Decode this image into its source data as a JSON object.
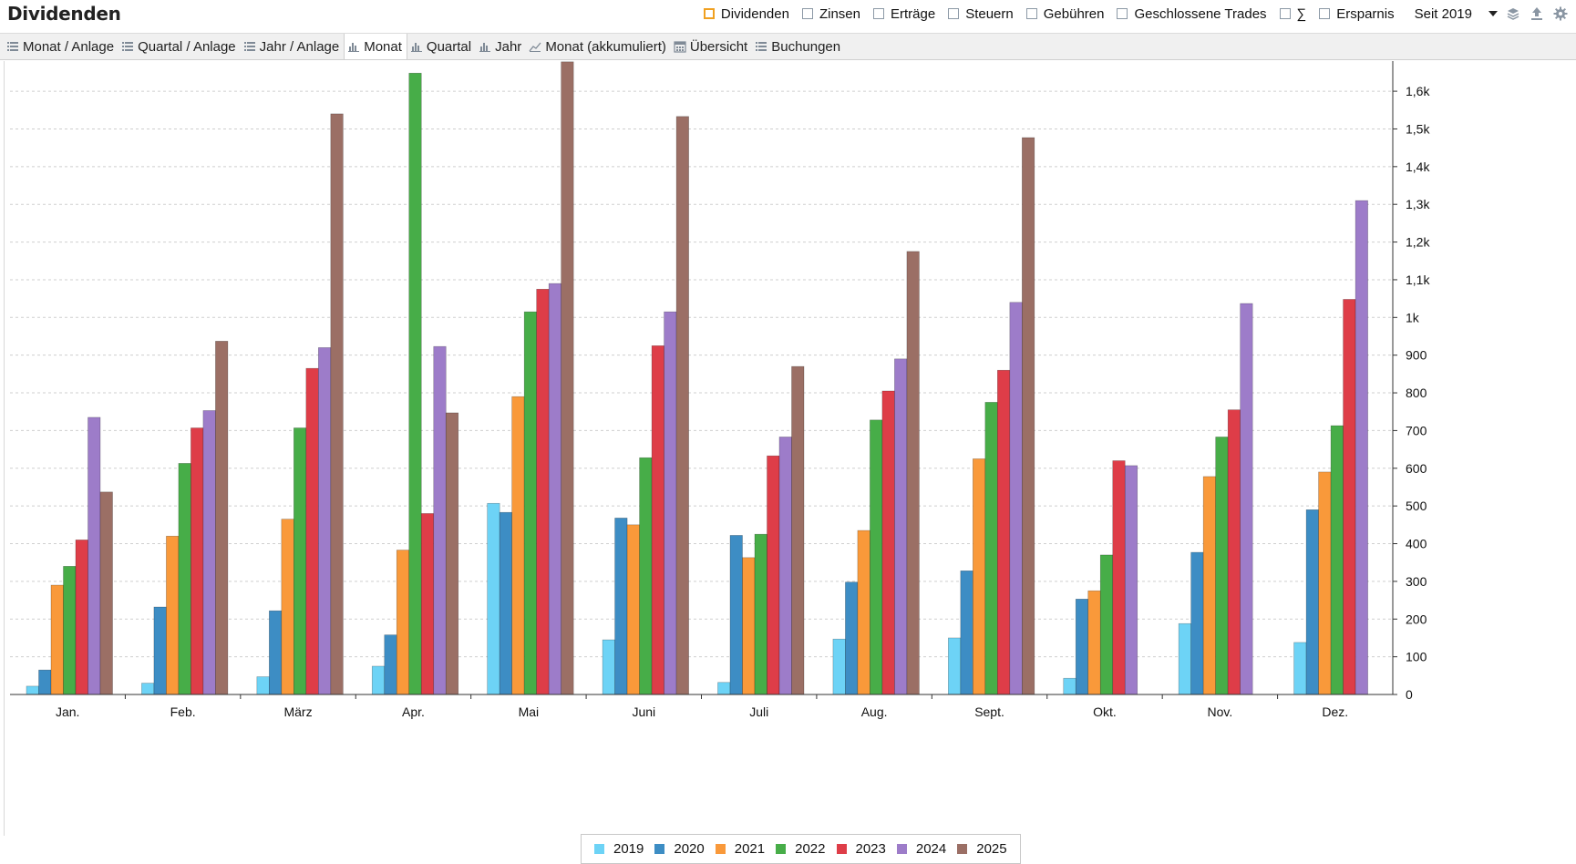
{
  "header": {
    "title": "Dividenden",
    "filters": [
      {
        "label": "Dividenden",
        "checked": true
      },
      {
        "label": "Zinsen",
        "checked": false
      },
      {
        "label": "Erträge",
        "checked": false
      },
      {
        "label": "Steuern",
        "checked": false
      },
      {
        "label": "Gebühren",
        "checked": false
      },
      {
        "label": "Geschlossene Trades",
        "checked": false
      },
      {
        "label": "∑",
        "checked": false
      },
      {
        "label": "Ersparnis",
        "checked": false
      }
    ],
    "period": "Seit 2019",
    "tool_icons": [
      "layers-icon",
      "upload-icon",
      "gear-icon"
    ]
  },
  "tabs": [
    {
      "label": "Monat / Anlage",
      "icon": "list-icon",
      "active": false
    },
    {
      "label": "Quartal / Anlage",
      "icon": "list-icon",
      "active": false
    },
    {
      "label": "Jahr / Anlage",
      "icon": "list-icon",
      "active": false
    },
    {
      "label": "Monat",
      "icon": "bar-chart-icon",
      "active": true
    },
    {
      "label": "Quartal",
      "icon": "bar-chart-icon",
      "active": false
    },
    {
      "label": "Jahr",
      "icon": "bar-chart-icon",
      "active": false
    },
    {
      "label": "Monat (akkumuliert)",
      "icon": "line-chart-icon",
      "active": false
    },
    {
      "label": "Übersicht",
      "icon": "calendar-icon",
      "active": false
    },
    {
      "label": "Buchungen",
      "icon": "list-icon",
      "active": false
    }
  ],
  "chart_data": {
    "type": "bar",
    "categories": [
      "Jan.",
      "Feb.",
      "März",
      "Apr.",
      "Mai",
      "Juni",
      "Juli",
      "Aug.",
      "Sept.",
      "Okt.",
      "Nov.",
      "Dez."
    ],
    "series": [
      {
        "name": "2019",
        "color": "#6dd3f6",
        "values": [
          22,
          30,
          47,
          75,
          507,
          145,
          32,
          147,
          150,
          43,
          188,
          138
        ]
      },
      {
        "name": "2020",
        "color": "#3d8dc4",
        "values": [
          65,
          232,
          222,
          158,
          483,
          468,
          422,
          298,
          328,
          253,
          377,
          490
        ]
      },
      {
        "name": "2021",
        "color": "#f9993a",
        "values": [
          290,
          420,
          465,
          383,
          790,
          450,
          363,
          435,
          625,
          275,
          578,
          590
        ]
      },
      {
        "name": "2022",
        "color": "#47ad48",
        "values": [
          340,
          613,
          707,
          1648,
          1015,
          628,
          425,
          728,
          775,
          370,
          683,
          713
        ]
      },
      {
        "name": "2023",
        "color": "#de3d48",
        "values": [
          410,
          707,
          865,
          480,
          1075,
          925,
          633,
          805,
          860,
          620,
          755,
          1048
        ]
      },
      {
        "name": "2024",
        "color": "#9d7cc9",
        "values": [
          735,
          753,
          920,
          923,
          1090,
          1015,
          683,
          890,
          1040,
          607,
          1037,
          1310
        ]
      },
      {
        "name": "2025",
        "color": "#9b6f65",
        "values": [
          537,
          937,
          1540,
          747,
          1678,
          1533,
          870,
          1175,
          1477,
          null,
          null,
          null
        ]
      }
    ],
    "ylim": [
      0,
      1680
    ],
    "yticks": [
      0,
      100,
      200,
      300,
      400,
      500,
      600,
      700,
      800,
      900,
      1000,
      1100,
      1200,
      1300,
      1400,
      1500,
      1600
    ],
    "ytick_labels": [
      "0",
      "100",
      "200",
      "300",
      "400",
      "500",
      "600",
      "700",
      "800",
      "900",
      "1k",
      "1,1k",
      "1,2k",
      "1,3k",
      "1,4k",
      "1,5k",
      "1,6k"
    ],
    "grid": true,
    "y_axis_side": "right",
    "legend_position": "bottom-center",
    "title": "",
    "xlabel": "",
    "ylabel": ""
  }
}
